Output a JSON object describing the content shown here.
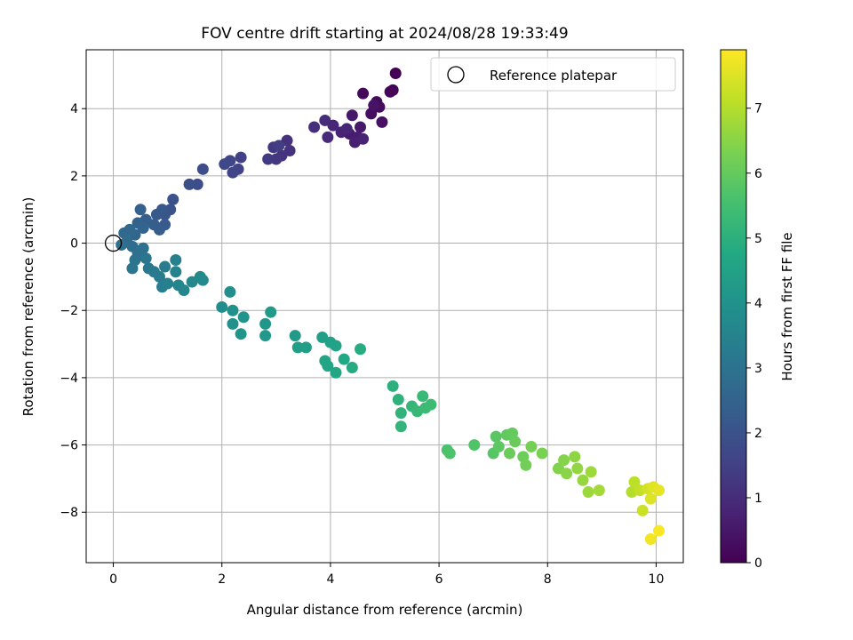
{
  "chart_data": {
    "type": "scatter",
    "title": "FOV centre drift starting at 2024/08/28 19:33:49",
    "xlabel": "Angular distance from reference (arcmin)",
    "ylabel": "Rotation from reference (arcmin)",
    "xlim": [
      -0.5,
      10.5
    ],
    "ylim": [
      -9.5,
      5.75
    ],
    "xticks": [
      0,
      2,
      4,
      6,
      8,
      10
    ],
    "yticks": [
      -8,
      -6,
      -4,
      -2,
      0,
      2,
      4
    ],
    "grid": true,
    "legend": {
      "location": "upper right",
      "entries": [
        "Reference platepar"
      ]
    },
    "reference_point": {
      "x": 0,
      "y": 0,
      "marker": "open circle"
    },
    "colorbar": {
      "label": "Hours from first FF file",
      "range": [
        0,
        7.9
      ],
      "ticks": [
        0,
        1,
        2,
        3,
        4,
        5,
        6,
        7
      ],
      "colormap": "viridis"
    },
    "points": [
      {
        "x": 5.2,
        "y": 5.05,
        "t": 0.0
      },
      {
        "x": 5.15,
        "y": 4.55,
        "t": 0.05
      },
      {
        "x": 5.1,
        "y": 4.5,
        "t": 0.1
      },
      {
        "x": 4.6,
        "y": 4.45,
        "t": 0.15
      },
      {
        "x": 4.85,
        "y": 4.2,
        "t": 0.2
      },
      {
        "x": 4.9,
        "y": 4.05,
        "t": 0.25
      },
      {
        "x": 4.75,
        "y": 3.85,
        "t": 0.3
      },
      {
        "x": 4.95,
        "y": 3.6,
        "t": 0.35
      },
      {
        "x": 4.8,
        "y": 4.1,
        "t": 0.4
      },
      {
        "x": 4.4,
        "y": 3.8,
        "t": 0.5
      },
      {
        "x": 4.55,
        "y": 3.45,
        "t": 0.55
      },
      {
        "x": 4.35,
        "y": 3.25,
        "t": 0.6
      },
      {
        "x": 4.5,
        "y": 3.15,
        "t": 0.65
      },
      {
        "x": 4.45,
        "y": 3.0,
        "t": 0.7
      },
      {
        "x": 4.6,
        "y": 3.1,
        "t": 0.75
      },
      {
        "x": 4.2,
        "y": 3.3,
        "t": 0.8
      },
      {
        "x": 4.3,
        "y": 3.4,
        "t": 0.85
      },
      {
        "x": 4.05,
        "y": 3.5,
        "t": 0.9
      },
      {
        "x": 3.95,
        "y": 3.15,
        "t": 0.95
      },
      {
        "x": 3.9,
        "y": 3.65,
        "t": 1.0
      },
      {
        "x": 3.7,
        "y": 3.45,
        "t": 1.05
      },
      {
        "x": 3.2,
        "y": 3.05,
        "t": 1.1
      },
      {
        "x": 3.25,
        "y": 2.75,
        "t": 1.15
      },
      {
        "x": 3.1,
        "y": 2.6,
        "t": 1.2
      },
      {
        "x": 3.0,
        "y": 2.5,
        "t": 1.25
      },
      {
        "x": 2.95,
        "y": 2.85,
        "t": 1.3
      },
      {
        "x": 2.85,
        "y": 2.5,
        "t": 1.35
      },
      {
        "x": 3.05,
        "y": 2.9,
        "t": 1.4
      },
      {
        "x": 2.35,
        "y": 2.55,
        "t": 1.5
      },
      {
        "x": 2.3,
        "y": 2.2,
        "t": 1.55
      },
      {
        "x": 2.2,
        "y": 2.1,
        "t": 1.6
      },
      {
        "x": 2.15,
        "y": 2.45,
        "t": 1.65
      },
      {
        "x": 2.05,
        "y": 2.35,
        "t": 1.7
      },
      {
        "x": 1.65,
        "y": 2.2,
        "t": 1.8
      },
      {
        "x": 1.55,
        "y": 1.75,
        "t": 1.85
      },
      {
        "x": 1.4,
        "y": 1.75,
        "t": 1.9
      },
      {
        "x": 1.1,
        "y": 1.3,
        "t": 2.0
      },
      {
        "x": 1.05,
        "y": 1.0,
        "t": 2.05
      },
      {
        "x": 0.95,
        "y": 0.85,
        "t": 2.1
      },
      {
        "x": 0.9,
        "y": 1.0,
        "t": 2.15
      },
      {
        "x": 0.8,
        "y": 0.85,
        "t": 2.2
      },
      {
        "x": 0.95,
        "y": 0.55,
        "t": 2.25
      },
      {
        "x": 0.85,
        "y": 0.4,
        "t": 2.3
      },
      {
        "x": 0.75,
        "y": 0.55,
        "t": 2.35
      },
      {
        "x": 0.6,
        "y": 0.7,
        "t": 2.4
      },
      {
        "x": 0.5,
        "y": 1.0,
        "t": 2.45
      },
      {
        "x": 0.45,
        "y": 0.6,
        "t": 2.5
      },
      {
        "x": 0.55,
        "y": 0.45,
        "t": 2.55
      },
      {
        "x": 0.4,
        "y": 0.25,
        "t": 2.6
      },
      {
        "x": 0.3,
        "y": 0.4,
        "t": 2.65
      },
      {
        "x": 0.2,
        "y": 0.3,
        "t": 2.7
      },
      {
        "x": 0.25,
        "y": 0.05,
        "t": 2.75
      },
      {
        "x": 0.35,
        "y": -0.1,
        "t": 2.8
      },
      {
        "x": 0.15,
        "y": -0.05,
        "t": 2.85
      },
      {
        "x": 0.45,
        "y": -0.3,
        "t": 2.9
      },
      {
        "x": 0.55,
        "y": -0.15,
        "t": 2.95
      },
      {
        "x": 0.4,
        "y": -0.5,
        "t": 3.0
      },
      {
        "x": 0.6,
        "y": -0.45,
        "t": 3.05
      },
      {
        "x": 0.35,
        "y": -0.75,
        "t": 3.1
      },
      {
        "x": 0.65,
        "y": -0.75,
        "t": 3.15
      },
      {
        "x": 0.75,
        "y": -0.85,
        "t": 3.2
      },
      {
        "x": 0.85,
        "y": -1.0,
        "t": 3.25
      },
      {
        "x": 0.95,
        "y": -0.7,
        "t": 3.3
      },
      {
        "x": 0.9,
        "y": -1.3,
        "t": 3.35
      },
      {
        "x": 1.0,
        "y": -1.2,
        "t": 3.4
      },
      {
        "x": 1.15,
        "y": -0.5,
        "t": 3.45
      },
      {
        "x": 1.15,
        "y": -0.85,
        "t": 3.5
      },
      {
        "x": 1.2,
        "y": -1.25,
        "t": 3.55
      },
      {
        "x": 1.3,
        "y": -1.4,
        "t": 3.6
      },
      {
        "x": 1.45,
        "y": -1.15,
        "t": 3.65
      },
      {
        "x": 1.6,
        "y": -1.0,
        "t": 3.7
      },
      {
        "x": 1.65,
        "y": -1.1,
        "t": 3.75
      },
      {
        "x": 2.0,
        "y": -1.9,
        "t": 3.85
      },
      {
        "x": 2.15,
        "y": -1.45,
        "t": 3.9
      },
      {
        "x": 2.2,
        "y": -2.0,
        "t": 3.95
      },
      {
        "x": 2.2,
        "y": -2.4,
        "t": 4.0
      },
      {
        "x": 2.4,
        "y": -2.2,
        "t": 4.05
      },
      {
        "x": 2.35,
        "y": -2.7,
        "t": 4.1
      },
      {
        "x": 2.8,
        "y": -2.4,
        "t": 4.15
      },
      {
        "x": 2.8,
        "y": -2.75,
        "t": 4.2
      },
      {
        "x": 2.9,
        "y": -2.05,
        "t": 4.25
      },
      {
        "x": 3.35,
        "y": -2.75,
        "t": 4.3
      },
      {
        "x": 3.4,
        "y": -3.1,
        "t": 4.35
      },
      {
        "x": 3.55,
        "y": -3.1,
        "t": 4.4
      },
      {
        "x": 3.85,
        "y": -2.8,
        "t": 4.45
      },
      {
        "x": 4.0,
        "y": -2.95,
        "t": 4.5
      },
      {
        "x": 4.1,
        "y": -3.05,
        "t": 4.55
      },
      {
        "x": 3.9,
        "y": -3.5,
        "t": 4.6
      },
      {
        "x": 3.95,
        "y": -3.65,
        "t": 4.65
      },
      {
        "x": 4.1,
        "y": -3.85,
        "t": 4.7
      },
      {
        "x": 4.25,
        "y": -3.45,
        "t": 4.75
      },
      {
        "x": 4.4,
        "y": -3.7,
        "t": 4.8
      },
      {
        "x": 4.55,
        "y": -3.15,
        "t": 4.85
      },
      {
        "x": 5.15,
        "y": -4.25,
        "t": 5.0
      },
      {
        "x": 5.25,
        "y": -4.65,
        "t": 5.05
      },
      {
        "x": 5.3,
        "y": -5.05,
        "t": 5.1
      },
      {
        "x": 5.3,
        "y": -5.45,
        "t": 5.15
      },
      {
        "x": 5.5,
        "y": -4.85,
        "t": 5.2
      },
      {
        "x": 5.6,
        "y": -5.0,
        "t": 5.25
      },
      {
        "x": 5.7,
        "y": -4.55,
        "t": 5.3
      },
      {
        "x": 5.75,
        "y": -4.9,
        "t": 5.35
      },
      {
        "x": 5.85,
        "y": -4.8,
        "t": 5.4
      },
      {
        "x": 6.15,
        "y": -6.15,
        "t": 5.6
      },
      {
        "x": 6.2,
        "y": -6.25,
        "t": 5.65
      },
      {
        "x": 6.65,
        "y": -6.0,
        "t": 5.7
      },
      {
        "x": 7.0,
        "y": -6.25,
        "t": 5.8
      },
      {
        "x": 7.05,
        "y": -5.75,
        "t": 5.85
      },
      {
        "x": 7.1,
        "y": -6.05,
        "t": 5.9
      },
      {
        "x": 7.25,
        "y": -5.7,
        "t": 5.95
      },
      {
        "x": 7.35,
        "y": -5.65,
        "t": 6.0
      },
      {
        "x": 7.4,
        "y": -5.9,
        "t": 6.05
      },
      {
        "x": 7.3,
        "y": -6.25,
        "t": 6.1
      },
      {
        "x": 7.55,
        "y": -6.35,
        "t": 6.15
      },
      {
        "x": 7.6,
        "y": -6.6,
        "t": 6.2
      },
      {
        "x": 7.7,
        "y": -6.05,
        "t": 6.25
      },
      {
        "x": 7.9,
        "y": -6.25,
        "t": 6.3
      },
      {
        "x": 8.2,
        "y": -6.7,
        "t": 6.4
      },
      {
        "x": 8.3,
        "y": -6.45,
        "t": 6.45
      },
      {
        "x": 8.35,
        "y": -6.85,
        "t": 6.5
      },
      {
        "x": 8.5,
        "y": -6.35,
        "t": 6.55
      },
      {
        "x": 8.55,
        "y": -6.7,
        "t": 6.6
      },
      {
        "x": 8.65,
        "y": -7.05,
        "t": 6.65
      },
      {
        "x": 8.75,
        "y": -7.4,
        "t": 6.7
      },
      {
        "x": 8.8,
        "y": -6.8,
        "t": 6.75
      },
      {
        "x": 8.95,
        "y": -7.35,
        "t": 6.8
      },
      {
        "x": 9.55,
        "y": -7.4,
        "t": 7.0
      },
      {
        "x": 9.6,
        "y": -7.1,
        "t": 7.1
      },
      {
        "x": 9.7,
        "y": -7.35,
        "t": 7.2
      },
      {
        "x": 9.75,
        "y": -7.95,
        "t": 7.3
      },
      {
        "x": 9.85,
        "y": -7.3,
        "t": 7.4
      },
      {
        "x": 9.9,
        "y": -7.6,
        "t": 7.5
      },
      {
        "x": 9.95,
        "y": -7.25,
        "t": 7.55
      },
      {
        "x": 10.05,
        "y": -7.35,
        "t": 7.6
      },
      {
        "x": 9.9,
        "y": -8.8,
        "t": 7.75
      },
      {
        "x": 10.05,
        "y": -8.55,
        "t": 7.85
      }
    ]
  }
}
